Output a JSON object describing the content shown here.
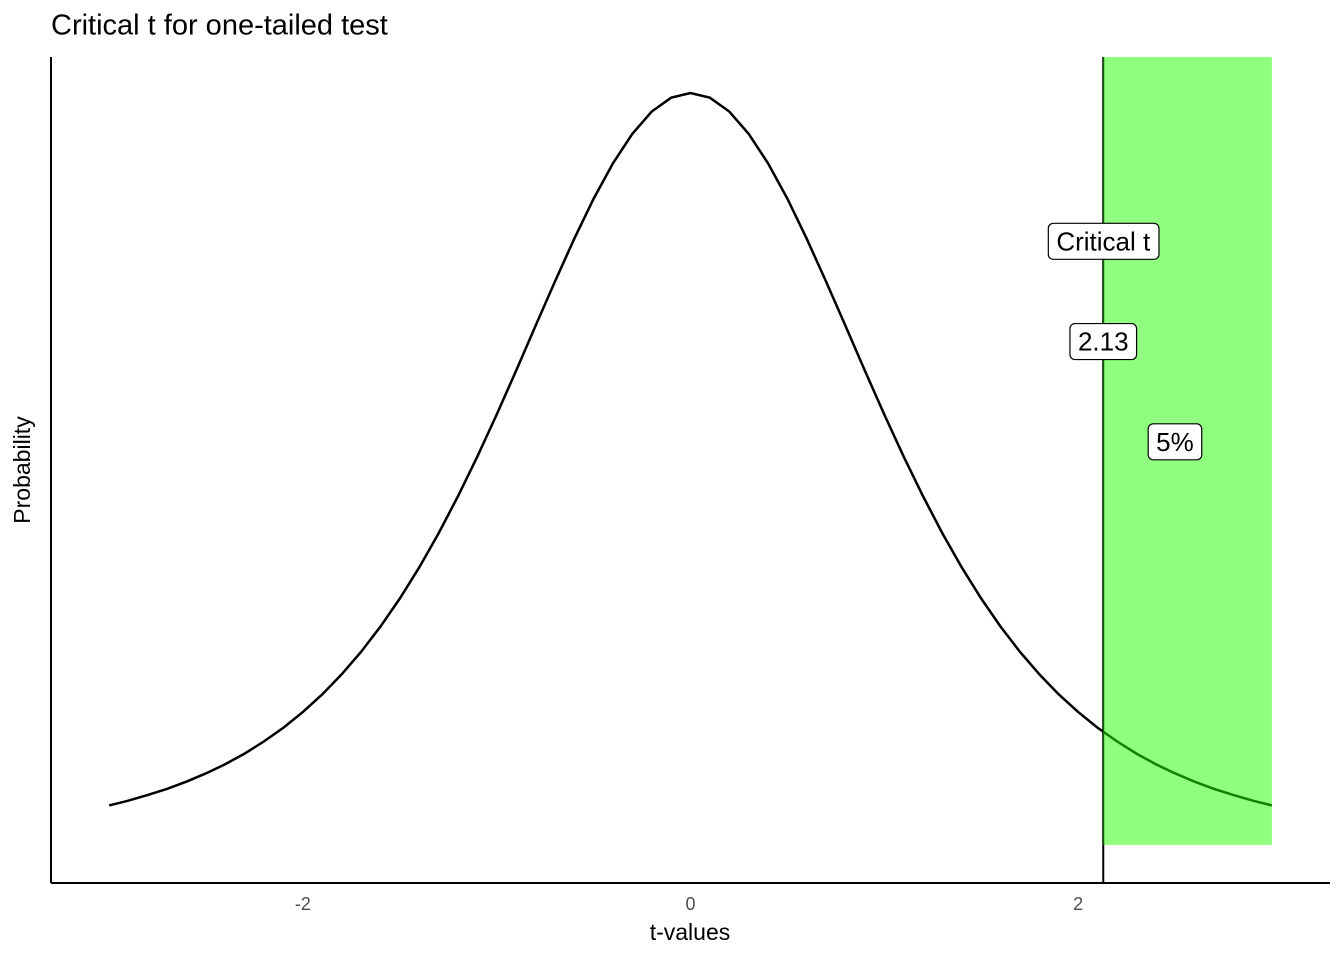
{
  "chart_data": {
    "type": "line",
    "title": "Critical t for one-tailed test",
    "x_label": "t-values",
    "y_label": "Probability",
    "x": [
      -3,
      -2.9,
      -2.8,
      -2.7,
      -2.6,
      -2.5,
      -2.4,
      -2.3,
      -2.2,
      -2.1,
      -2,
      -1.9,
      -1.8,
      -1.7,
      -1.6,
      -1.5,
      -1.4,
      -1.3,
      -1.2,
      -1.1,
      -1,
      -0.9,
      -0.8,
      -0.7,
      -0.6,
      -0.5,
      -0.4,
      -0.3,
      -0.2,
      -0.1,
      0,
      0.1,
      0.2,
      0.3,
      0.4,
      0.5,
      0.6,
      0.7,
      0.8,
      0.9,
      1,
      1.1,
      1.2,
      1.3,
      1.4,
      1.5,
      1.6,
      1.7,
      1.8,
      1.9,
      2,
      2.1,
      2.2,
      2.3,
      2.4,
      2.5,
      2.6,
      2.7,
      2.8,
      2.9,
      3
    ],
    "series": [
      {
        "color": "#000000",
        "values": [
          0.0197,
          0.0221,
          0.0249,
          0.028,
          0.0316,
          0.0357,
          0.0403,
          0.0456,
          0.0517,
          0.0585,
          0.0663,
          0.0751,
          0.0851,
          0.0963,
          0.1089,
          0.1229,
          0.1384,
          0.1554,
          0.1739,
          0.1937,
          0.2147,
          0.2365,
          0.2588,
          0.2809,
          0.3023,
          0.3223,
          0.34,
          0.3547,
          0.3658,
          0.3727,
          0.375,
          0.3727,
          0.3658,
          0.3547,
          0.34,
          0.3223,
          0.3023,
          0.2809,
          0.2588,
          0.2365,
          0.2147,
          0.1937,
          0.1739,
          0.1554,
          0.1384,
          0.1229,
          0.1089,
          0.0963,
          0.0851,
          0.0751,
          0.0663,
          0.0585,
          0.0517,
          0.0456,
          0.0403,
          0.0357,
          0.0316,
          0.028,
          0.0249,
          0.0221,
          0.0197
        ]
      }
    ],
    "xlim": [
      -3.3,
      3.3
    ],
    "ylim": [
      -0.019,
      0.393
    ],
    "xticks": [
      -2,
      0,
      2
    ],
    "vline": 2.13,
    "shade": {
      "xmin": 2.13,
      "xmax": 3,
      "ymin": 0,
      "ymax": 0.393,
      "color": "#21ff00",
      "alpha": 0.5
    },
    "annotations": [
      {
        "text": "Critical t",
        "x": 2.13,
        "y": 0.3
      },
      {
        "text": "2.13",
        "x": 2.13,
        "y": 0.25
      },
      {
        "text": "5%",
        "x": 2.5,
        "y": 0.2
      }
    ]
  }
}
